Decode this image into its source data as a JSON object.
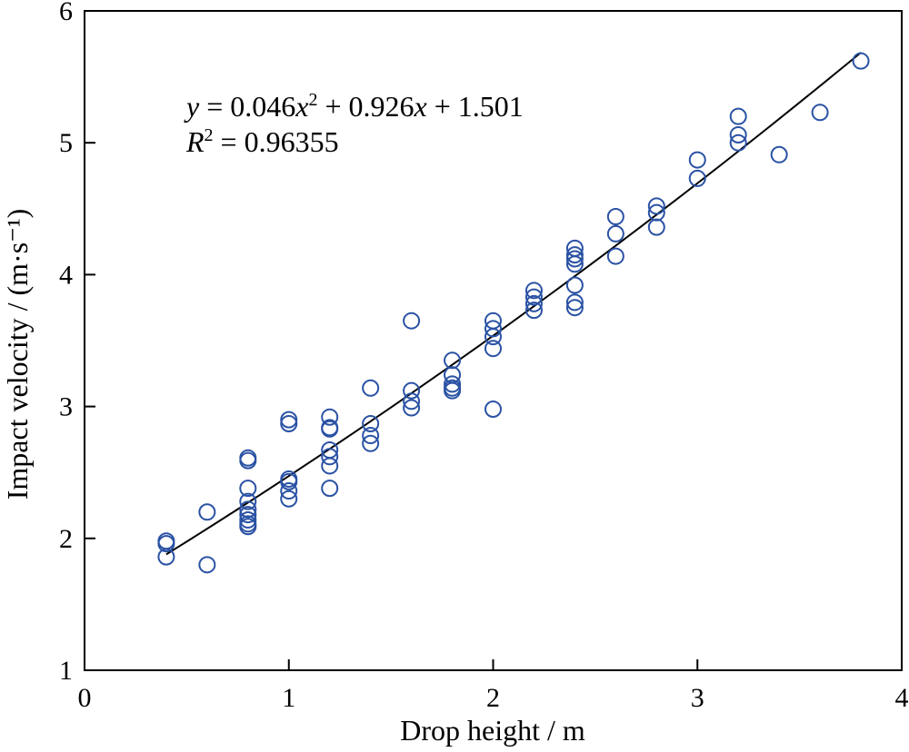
{
  "chart_data": {
    "type": "scatter",
    "xlabel": "Drop height / m",
    "ylabel": "Impact velocity / (m·s⁻¹)",
    "xlim": [
      0,
      4
    ],
    "ylim": [
      1,
      6
    ],
    "xticks": [
      0,
      1,
      2,
      3,
      4
    ],
    "yticks": [
      1,
      2,
      3,
      4,
      5,
      6
    ],
    "grid": false,
    "marker_color": "#2a52a4",
    "fit_line_color": "#000000",
    "annotations": {
      "equation": {
        "y": "y",
        "eq1": " = 0.046",
        "x1": "x",
        "sup2": "2",
        "eq2": " + 0.926",
        "x2": "x",
        "eq3": " + 1.501"
      },
      "r2": {
        "r": "R",
        "sup2": "2",
        "value": " = 0.96355"
      }
    },
    "fit": {
      "coefficients": {
        "a": 0.046,
        "b": 0.926,
        "c": 1.501
      },
      "x_range": [
        0.4,
        3.8
      ]
    },
    "points": [
      [
        0.4,
        1.98
      ],
      [
        0.4,
        1.96
      ],
      [
        0.4,
        1.86
      ],
      [
        0.6,
        2.2
      ],
      [
        0.6,
        1.8
      ],
      [
        0.8,
        2.61
      ],
      [
        0.8,
        2.59
      ],
      [
        0.8,
        2.38
      ],
      [
        0.8,
        2.28
      ],
      [
        0.8,
        2.22
      ],
      [
        0.8,
        2.18
      ],
      [
        0.8,
        2.14
      ],
      [
        0.8,
        2.11
      ],
      [
        0.8,
        2.09
      ],
      [
        1.0,
        2.9
      ],
      [
        1.0,
        2.87
      ],
      [
        1.0,
        2.45
      ],
      [
        1.0,
        2.43
      ],
      [
        1.0,
        2.36
      ],
      [
        1.0,
        2.3
      ],
      [
        1.2,
        2.92
      ],
      [
        1.2,
        2.84
      ],
      [
        1.2,
        2.83
      ],
      [
        1.2,
        2.67
      ],
      [
        1.2,
        2.62
      ],
      [
        1.2,
        2.55
      ],
      [
        1.2,
        2.38
      ],
      [
        1.4,
        3.14
      ],
      [
        1.4,
        2.87
      ],
      [
        1.4,
        2.78
      ],
      [
        1.4,
        2.72
      ],
      [
        1.6,
        3.65
      ],
      [
        1.6,
        3.12
      ],
      [
        1.6,
        3.04
      ],
      [
        1.6,
        2.99
      ],
      [
        1.8,
        3.35
      ],
      [
        1.8,
        3.24
      ],
      [
        1.8,
        3.17
      ],
      [
        1.8,
        3.14
      ],
      [
        1.8,
        3.12
      ],
      [
        2.0,
        3.65
      ],
      [
        2.0,
        3.59
      ],
      [
        2.0,
        3.53
      ],
      [
        2.0,
        3.44
      ],
      [
        2.0,
        2.98
      ],
      [
        2.2,
        3.88
      ],
      [
        2.2,
        3.83
      ],
      [
        2.2,
        3.78
      ],
      [
        2.2,
        3.73
      ],
      [
        2.4,
        4.2
      ],
      [
        2.4,
        4.15
      ],
      [
        2.4,
        4.12
      ],
      [
        2.4,
        4.08
      ],
      [
        2.4,
        3.92
      ],
      [
        2.4,
        3.79
      ],
      [
        2.4,
        3.75
      ],
      [
        2.6,
        4.44
      ],
      [
        2.6,
        4.31
      ],
      [
        2.6,
        4.14
      ],
      [
        2.8,
        4.52
      ],
      [
        2.8,
        4.47
      ],
      [
        2.8,
        4.36
      ],
      [
        3.0,
        4.87
      ],
      [
        3.0,
        4.73
      ],
      [
        3.2,
        5.2
      ],
      [
        3.2,
        5.06
      ],
      [
        3.2,
        5.0
      ],
      [
        3.4,
        4.91
      ],
      [
        3.6,
        5.23
      ],
      [
        3.8,
        5.62
      ]
    ]
  }
}
